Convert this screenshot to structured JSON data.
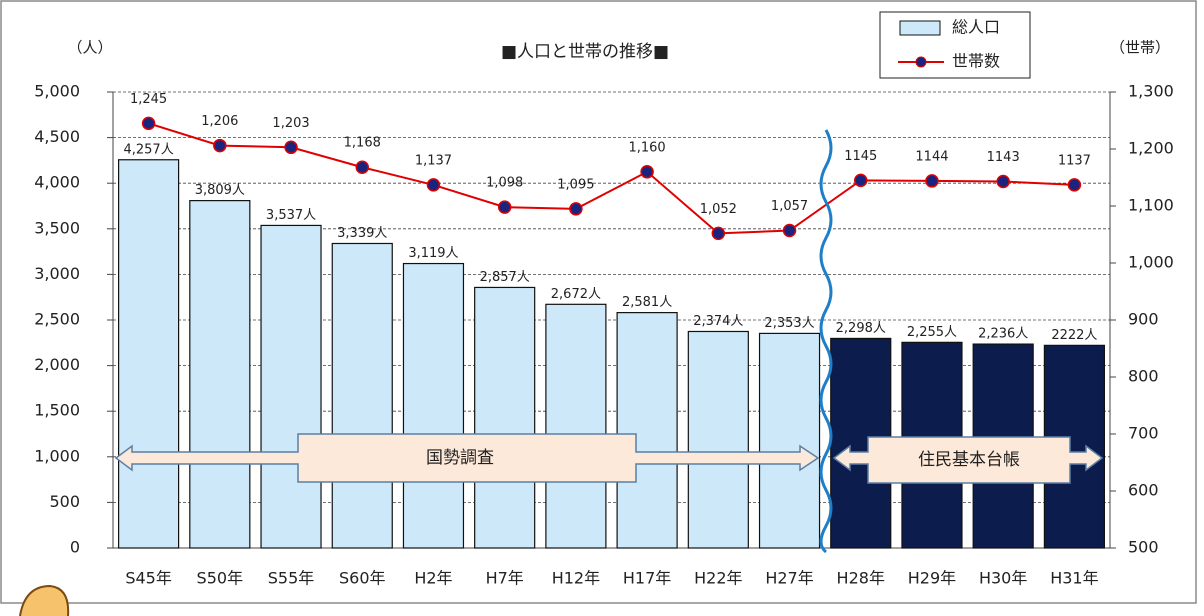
{
  "chart_data": {
    "type": "bar-line",
    "title": "■人口と世帯の推移■",
    "y_label": "（人）",
    "y2_label": "（世帯）",
    "categories": [
      "S45年",
      "S50年",
      "S55年",
      "S60年",
      "H2年",
      "H7年",
      "H12年",
      "H17年",
      "H22年",
      "H27年",
      "H28年",
      "H29年",
      "H30年",
      "H31年"
    ],
    "series": [
      {
        "name": "総人口",
        "type": "bar",
        "color": "#cde9f9",
        "bar_colors": [
          "#cde9f9",
          "#cde9f9",
          "#cde9f9",
          "#cde9f9",
          "#cde9f9",
          "#cde9f9",
          "#cde9f9",
          "#cde9f9",
          "#cde9f9",
          "#cde9f9",
          "#0b1c4d",
          "#0b1c4d",
          "#0b1c4d",
          "#0b1c4d"
        ],
        "values": [
          4257,
          3809,
          3537,
          3339,
          3119,
          2857,
          2672,
          2581,
          2374,
          2353,
          2298,
          2255,
          2236,
          2222
        ],
        "value_labels": [
          "4,257人",
          "3,809人",
          "3,537人",
          "3,339人",
          "3,119人",
          "2,857人",
          "2,672人",
          "2,581人",
          "2,374人",
          "2,353人",
          "2,298人",
          "2,255人",
          "2,236人",
          "2222人"
        ]
      },
      {
        "name": "世帯数",
        "type": "line",
        "axis": "y2",
        "color": "#e00000",
        "marker_color": "#1a237e",
        "values": [
          1245,
          1206,
          1203,
          1168,
          1137,
          1098,
          1095,
          1160,
          1052,
          1057,
          1145,
          1144,
          1143,
          1137
        ],
        "value_labels": [
          "1,245",
          "1,206",
          "1,203",
          "1,168",
          "1,137",
          "1,098",
          "1,095",
          "1,160",
          "1,052",
          "1,057",
          "1145",
          "1144",
          "1143",
          "1137"
        ]
      }
    ],
    "ylim": [
      0,
      5000
    ],
    "yticks": [
      0,
      500,
      {
        "value": 1000,
        "label": "1,000"
      },
      {
        "value": 1500,
        "label": "1,500"
      },
      {
        "value": 2000,
        "label": "2,000"
      },
      {
        "value": 2500,
        "label": "2,500"
      },
      {
        "value": 3000,
        "label": "3,000"
      },
      {
        "value": 3500,
        "label": "3,500"
      },
      {
        "value": 4000,
        "label": "4,000"
      },
      {
        "value": 4500,
        "label": "4,500"
      },
      {
        "value": 5000,
        "label": "5,000"
      }
    ],
    "y2lim": [
      500,
      1300
    ],
    "y2ticks": [
      500,
      600,
      700,
      800,
      900,
      {
        "value": 1000,
        "label": "1,000"
      },
      {
        "value": 1100,
        "label": "1,100"
      },
      {
        "value": 1200,
        "label": "1,200"
      },
      {
        "value": 1300,
        "label": "1,300"
      }
    ],
    "grid": true,
    "legend": "top-right",
    "annotations": [
      "国勢調査",
      "住民基本台帳"
    ]
  }
}
